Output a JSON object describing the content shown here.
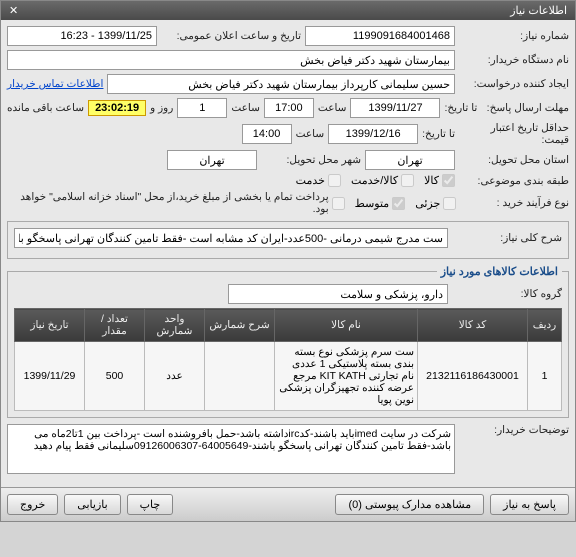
{
  "window_title": "اطلاعات نیاز",
  "fields": {
    "req_no_label": "شماره نیاز:",
    "req_no": "1199091684001468",
    "announce_label": "تاریخ و ساعت اعلان عمومی:",
    "announce": "1399/11/25 - 16:23",
    "buyer_org_label": "نام دستگاه خریدار:",
    "buyer_org": "بیمارستان شهید دکتر فیاض بخش",
    "creator_label": "ایجاد کننده درخواست:",
    "creator": "حسین سلیمانی کارپرداز بیمارستان شهید دکتر فیاض بخش",
    "contact_link": "اطلاعات تماس خریدار",
    "reply_deadline_label": "مهلت ارسال پاسخ:",
    "deadline_to_label": "تا تاریخ:",
    "deadline_date": "1399/11/27",
    "deadline_time": "17:00",
    "saat": "ساعت",
    "days": "1",
    "rooz_va": "روز و",
    "countdown": "23:02:19",
    "remain_label": "ساعت باقی مانده",
    "validity_label": "حداقل تاریخ اعتبار قیمت:",
    "validity_date": "1399/12/16",
    "validity_time": "14:00",
    "delivery_prov_label": "استان محل تحویل:",
    "delivery_prov": "تهران",
    "delivery_city_label": "شهر محل تحویل:",
    "delivery_city": "تهران",
    "category_label": "طبقه بندی موضوعی:",
    "cat_goods": "کالا",
    "cat_service": "کالا/خدمت",
    "cat_svc_only": "خدمت",
    "purchase_type_label": "نوع فرآیند خرید :",
    "pt_small": "جزئی",
    "pt_medium": "متوسط",
    "pt_note": "پرداخت تمام یا بخشی از مبلغ خرید،از محل \"اسناد خزانه اسلامی\" خواهد بود."
  },
  "desc_section_title": "شرح کلی نیاز:",
  "desc_text": "ست مدرج شیمی درمانی -500عدد-ایران کد مشابه است -فقط تامین کنندگان تهرانی پاسخگو باشند",
  "goods_section_title": "اطلاعات کالاهای مورد نیاز",
  "goods_group_label": "گروه کالا:",
  "goods_group": "دارو، پزشکی و سلامت",
  "table": {
    "headers": [
      "ردیف",
      "کد کالا",
      "نام کالا",
      "شرح شمارش",
      "واحد شمارش",
      "تعداد / مقدار",
      "تاریخ نیاز"
    ],
    "rows": [
      {
        "idx": "1",
        "code": "2132116186430001",
        "name": "ست سرم پزشکی نوع بسته بندی بسته پلاستیکی 1 عددی نام تجارتی KIT KATH مرجع عرضه کننده تجهیزگران پزشکی نوین پویا",
        "count_desc": "",
        "unit": "عدد",
        "qty": "500",
        "need_date": "1399/11/29"
      }
    ]
  },
  "buyer_notes_label": "توضیحات خریدار:",
  "buyer_notes": "شرکت در سایت imedباید باشند-کدircداشته باشد-حمل بافروشنده است -پرداخت بین 1تا2ماه می باشد-فقط تامین کنندگان تهرانی پاسخگو باشند-64005649-09126006307سلیمانی فقط پیام دهید",
  "buttons": {
    "reply": "پاسخ به نیاز",
    "attachments": "مشاهده مدارک پیوستی  (0)",
    "print": "چاپ",
    "refresh": "بازیابی",
    "exit": "خروج"
  },
  "colors": {
    "header_bg": "#4a4a4a",
    "link": "#0044cc",
    "highlight": "#ffff66"
  }
}
